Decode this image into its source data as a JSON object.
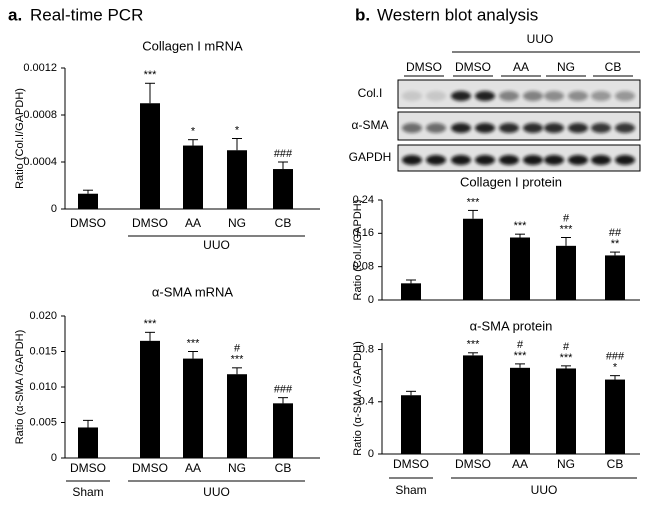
{
  "panels": [
    {
      "letter": "a.",
      "title": "Real-time PCR"
    },
    {
      "letter": "b.",
      "title": "Western blot analysis"
    }
  ],
  "blot": {
    "group": "UUO",
    "lanes": [
      "DMSO",
      "DMSO",
      "AA",
      "NG",
      "CB"
    ],
    "rows": [
      "Col.I",
      "α-SMA",
      "GAPDH"
    ]
  },
  "chart_data": [
    {
      "type": "bar",
      "title": "Collagen I mRNA",
      "ylabel": "Ratio (Col.I/GAPDH)",
      "color": "#000000",
      "categories": [
        "DMSO",
        "DMSO",
        "AA",
        "NG",
        "CB"
      ],
      "group_labels": [
        "UUO"
      ],
      "values": [
        0.00013,
        0.0009,
        0.00054,
        0.0005,
        0.00034
      ],
      "errors": [
        3e-05,
        0.00017,
        5e-05,
        0.0001,
        6e-05
      ],
      "annotations": [
        [],
        [
          "***"
        ],
        [
          "*"
        ],
        [
          "*"
        ],
        [
          "###"
        ]
      ],
      "ylim": [
        0,
        0.0012
      ],
      "yticks": [
        0,
        0.0004,
        0.0008,
        0.0012
      ]
    },
    {
      "type": "bar",
      "title": "α-SMA mRNA",
      "ylabel": "Ratio (α-SMA /GAPDH)",
      "color": "#000000",
      "categories": [
        "DMSO",
        "DMSO",
        "AA",
        "NG",
        "CB"
      ],
      "group_labels": [
        "Sham",
        "UUO"
      ],
      "values": [
        0.0043,
        0.0165,
        0.014,
        0.0118,
        0.0077
      ],
      "errors": [
        0.001,
        0.0012,
        0.001,
        0.0009,
        0.0008
      ],
      "annotations": [
        [],
        [
          "***"
        ],
        [
          "***"
        ],
        [
          "#",
          "***"
        ],
        [
          "###"
        ]
      ],
      "ylim": [
        0,
        0.02
      ],
      "yticks": [
        0,
        0.005,
        {
          "value": 0.01,
          "label": "0.010"
        },
        0.015,
        {
          "value": 0.02,
          "label": "0.020"
        }
      ]
    },
    {
      "type": "bar",
      "title": "Collagen I protein",
      "ylabel": "Ratio (Col.I/GAPDH)",
      "color": "#000000",
      "values": [
        0.04,
        0.195,
        0.15,
        0.13,
        0.107
      ],
      "errors": [
        0.008,
        0.02,
        0.008,
        0.02,
        0.008
      ],
      "annotations": [
        [],
        [
          "***"
        ],
        [
          "***"
        ],
        [
          "#",
          "***"
        ],
        [
          "##",
          "**"
        ]
      ],
      "ylim": [
        0,
        0.24
      ],
      "yticks": [
        0,
        0.08,
        0.16,
        0.24
      ]
    },
    {
      "type": "bar",
      "title": "α-SMA protein",
      "ylabel": "Ratio (α-SMA /GAPDH)",
      "color": "#000000",
      "categories": [
        "DMSO",
        "DMSO",
        "AA",
        "NG",
        "CB"
      ],
      "group_labels": [
        "Sham",
        "UUO"
      ],
      "values": [
        0.45,
        0.755,
        0.66,
        0.655,
        0.57
      ],
      "errors": [
        0.03,
        0.02,
        0.03,
        0.02,
        0.03
      ],
      "annotations": [
        [],
        [
          "***"
        ],
        [
          "#",
          "***"
        ],
        [
          "#",
          "***"
        ],
        [
          "###",
          "*"
        ]
      ],
      "ylim": [
        0,
        0.85
      ],
      "yticks": [
        0,
        0.4,
        0.8
      ]
    }
  ]
}
